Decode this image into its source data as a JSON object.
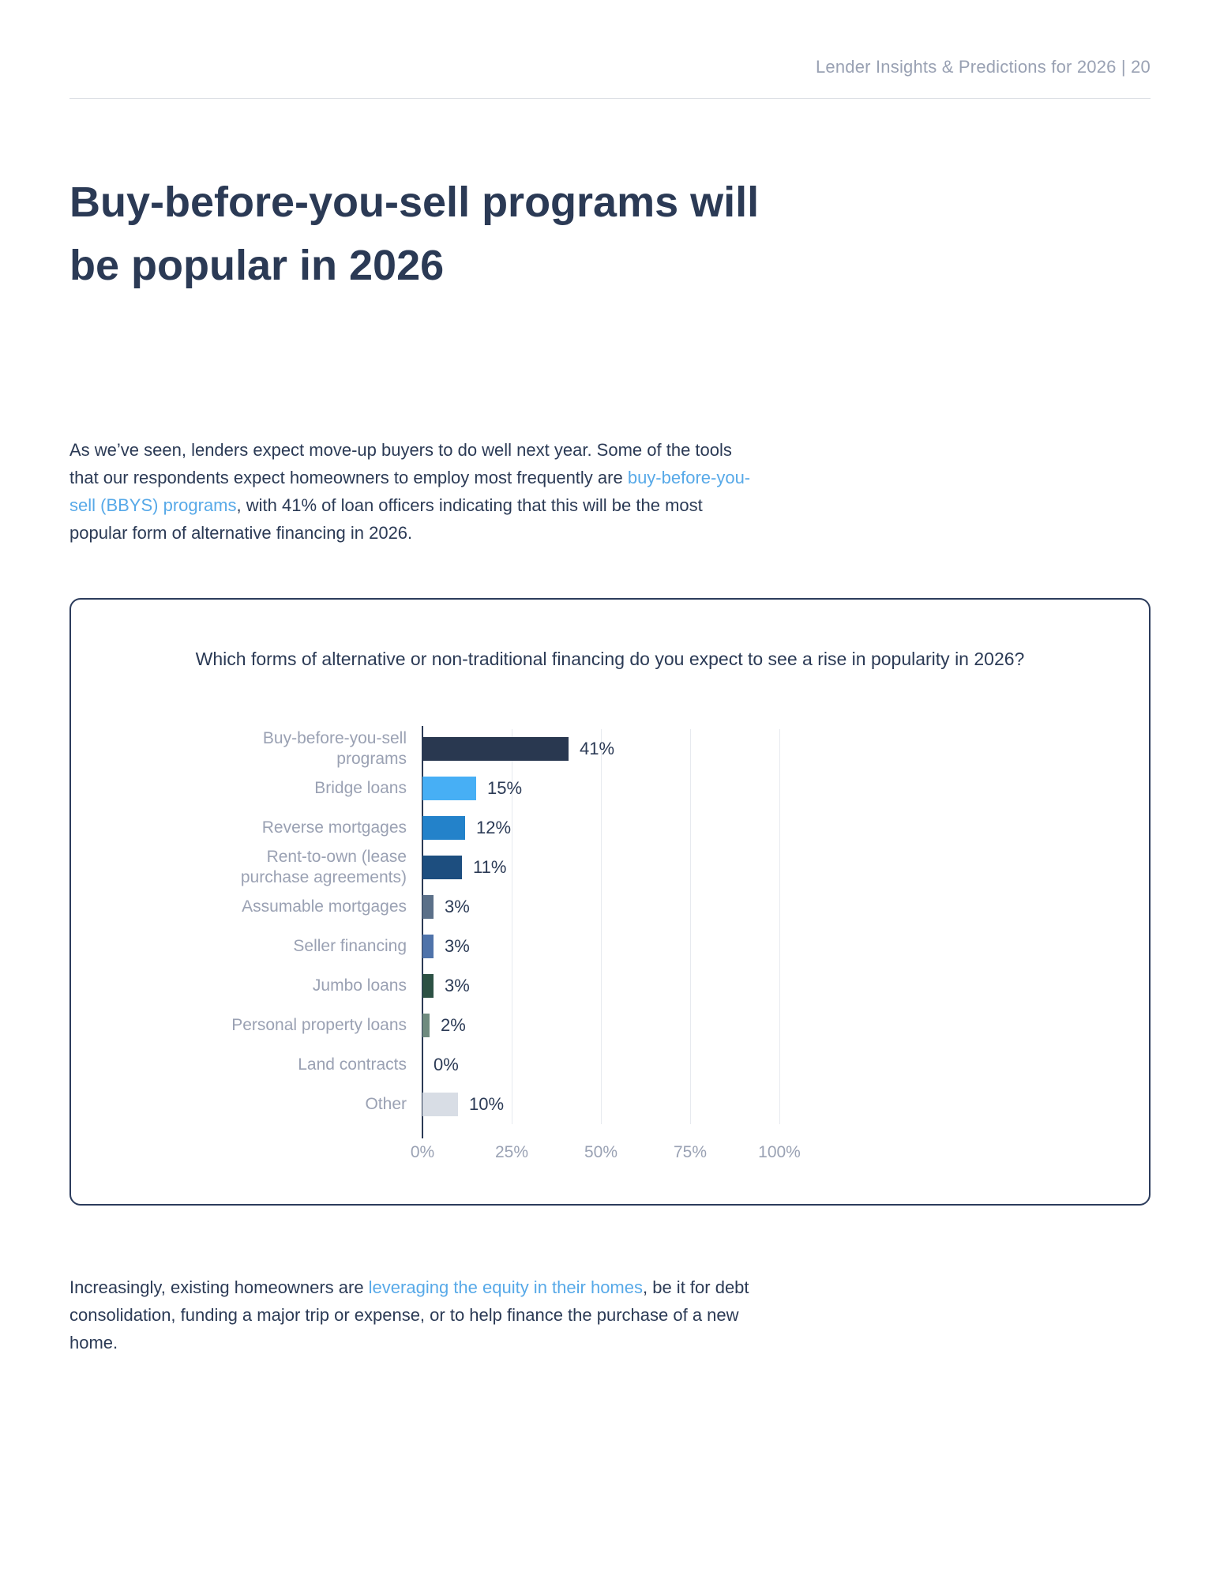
{
  "header": {
    "text": "Lender Insights & Predictions for 2026 | 20"
  },
  "title": {
    "line1": "Buy-before-you-sell programs will",
    "line2": "be popular in 2026"
  },
  "intro": {
    "pre": "As we’ve seen, lenders expect move-up buyers to do well next year. Some of the tools that our respondents expect homeowners to employ most frequently are ",
    "link": "buy-before-you-sell (BBYS) programs",
    "post": ", with 41% of loan officers indicating that this will be the most popular form of alternative financing in 2026."
  },
  "closing": {
    "pre": "Increasingly, existing homeowners are ",
    "link": "leveraging the equity in their homes",
    "post": ", be it for debt consolidation, funding a major trip or expense, or to help finance the purchase of a new home."
  },
  "colors": {
    "text_navy": "#2B3A55",
    "link_blue": "#57A9E8",
    "header_gray": "#99A1B3",
    "label_gray": "#9AA1B3",
    "card_border_navy": "#2C3C5C",
    "gridline_gray": "#E7EAEF"
  },
  "chart_data": {
    "type": "bar",
    "orientation": "horizontal",
    "title": "Which forms of alternative or non-traditional financing do you expect to see a rise in popularity in 2026?",
    "categories": [
      "Buy-before-you-sell programs",
      "Bridge loans",
      "Reverse mortgages",
      "Rent-to-own (lease purchase agreements)",
      "Assumable mortgages",
      "Seller financing",
      "Jumbo loans",
      "Personal property loans",
      "Land contracts",
      "Other"
    ],
    "values": [
      41,
      15,
      12,
      11,
      3,
      3,
      3,
      2,
      0,
      10
    ],
    "bar_colors": [
      "#293850",
      "#47AFF5",
      "#2382CA",
      "#1D4E7F",
      "#5B7089",
      "#4F73AA",
      "#2C5144",
      "#6F8B7F",
      "#293850",
      "#D8DDE5"
    ],
    "xlabel": "",
    "ylabel": "",
    "x_ticks": [
      "0%",
      "25%",
      "50%",
      "75%",
      "100%"
    ],
    "xlim": [
      0,
      100
    ],
    "grid": true,
    "legend": false
  }
}
